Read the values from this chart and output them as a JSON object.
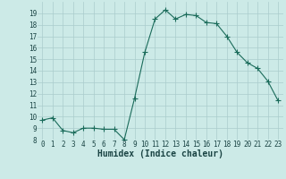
{
  "xlabel": "Humidex (Indice chaleur)",
  "x": [
    0,
    1,
    2,
    3,
    4,
    5,
    6,
    7,
    8,
    9,
    10,
    11,
    12,
    13,
    14,
    15,
    16,
    17,
    18,
    19,
    20,
    21,
    22,
    23
  ],
  "y": [
    9.7,
    9.9,
    8.8,
    8.6,
    9.0,
    9.0,
    8.9,
    8.9,
    8.0,
    11.6,
    15.6,
    18.5,
    19.3,
    18.5,
    18.9,
    18.8,
    18.2,
    18.1,
    17.0,
    15.6,
    14.7,
    14.2,
    13.1,
    11.4
  ],
  "line_color": "#1a6b5a",
  "marker": "+",
  "marker_size": 4,
  "bg_color": "#cceae7",
  "grid_color": "#aacccc",
  "ylim": [
    8,
    20
  ],
  "xlim": [
    -0.5,
    23.5
  ],
  "yticks": [
    8,
    9,
    10,
    11,
    12,
    13,
    14,
    15,
    16,
    17,
    18,
    19
  ],
  "xticks": [
    0,
    1,
    2,
    3,
    4,
    5,
    6,
    7,
    8,
    9,
    10,
    11,
    12,
    13,
    14,
    15,
    16,
    17,
    18,
    19,
    20,
    21,
    22,
    23
  ],
  "tick_label_fontsize": 5.5,
  "xlabel_fontsize": 7.0,
  "label_color": "#1a4444"
}
